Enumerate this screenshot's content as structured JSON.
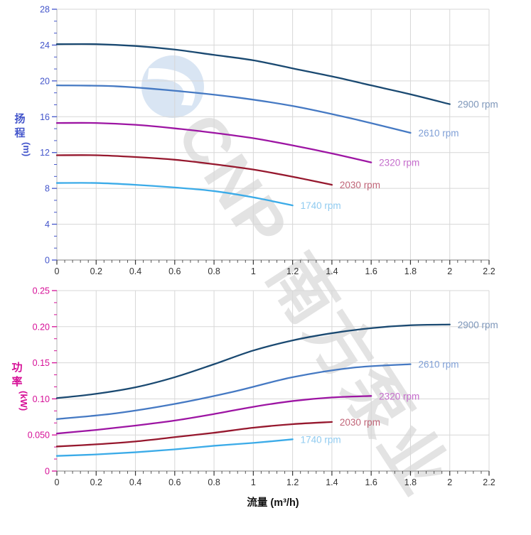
{
  "watermark": {
    "brand": "CNP",
    "company": "南方泵业",
    "logo": "cnp-swoosh-logo",
    "text_color": "#e3e3e3",
    "logo_color": "#d9e5f3"
  },
  "x_axis": {
    "title": "流量 (m³/h)",
    "tick_labels": [
      "0",
      "0.2",
      "0.4",
      "0.6",
      "0.8",
      "1",
      "1.2",
      "1.4",
      "1.6",
      "1.8",
      "2",
      "2.2"
    ],
    "tick_values": [
      0,
      0.2,
      0.4,
      0.6,
      0.8,
      1,
      1.2,
      1.4,
      1.6,
      1.8,
      2,
      2.2
    ],
    "minor_step": 0.04,
    "range": [
      0,
      2.2
    ],
    "label_color": "#333333",
    "title_color": "#111111"
  },
  "style": {
    "grid_color": "#d7d7d7",
    "axis_line_color": "#9a9a9a",
    "x_tick_color": "#333333",
    "background": "#ffffff"
  },
  "chart_data": [
    {
      "type": "line",
      "id": "head",
      "title": "",
      "ylabel": "扬程 (m)",
      "y_title_chars": [
        "扬",
        "程"
      ],
      "y_unit": "(m)",
      "xlabel": "流量 (m³/h)",
      "xlim": [
        0,
        2.2
      ],
      "ylim": [
        0,
        28
      ],
      "grid": true,
      "legend_position": "right-of-curve-end",
      "y_tick_labels": [
        "0",
        "4",
        "8",
        "12",
        "16",
        "20",
        "24",
        "28"
      ],
      "y_tick_values": [
        0,
        4,
        8,
        12,
        16,
        20,
        24,
        28
      ],
      "axis_color": "#4355cb",
      "series": [
        {
          "name": "2900 rpm",
          "color": "#1a4971",
          "label_color": "#7e97ba",
          "x": [
            0,
            0.2,
            0.4,
            0.6,
            0.8,
            1,
            1.2,
            1.4,
            1.6,
            1.8,
            2
          ],
          "y": [
            24.1,
            24.1,
            23.9,
            23.5,
            22.9,
            22.3,
            21.4,
            20.5,
            19.5,
            18.5,
            17.4
          ]
        },
        {
          "name": "2610 rpm",
          "color": "#4579c3",
          "label_color": "#7f9fd6",
          "x": [
            0,
            0.3,
            0.6,
            0.9,
            1.2,
            1.5,
            1.8
          ],
          "y": [
            19.5,
            19.4,
            18.9,
            18.2,
            17.2,
            15.8,
            14.2
          ]
        },
        {
          "name": "2320 rpm",
          "color": "#9d15a3",
          "label_color": "#c46ccb",
          "x": [
            0,
            0.2,
            0.4,
            0.6,
            0.8,
            1,
            1.2,
            1.4,
            1.6
          ],
          "y": [
            15.3,
            15.3,
            15.1,
            14.7,
            14.2,
            13.6,
            12.8,
            11.9,
            10.9
          ]
        },
        {
          "name": "2030 rpm",
          "color": "#96182e",
          "label_color": "#c06578",
          "x": [
            0,
            0.2,
            0.4,
            0.6,
            0.8,
            1,
            1.2,
            1.4
          ],
          "y": [
            11.7,
            11.7,
            11.5,
            11.2,
            10.7,
            10.1,
            9.3,
            8.4
          ]
        },
        {
          "name": "1740 rpm",
          "color": "#3babe8",
          "label_color": "#90cbf0",
          "x": [
            0,
            0.2,
            0.4,
            0.6,
            0.8,
            1,
            1.2
          ],
          "y": [
            8.6,
            8.6,
            8.4,
            8.1,
            7.7,
            7.0,
            6.1
          ]
        }
      ]
    },
    {
      "type": "line",
      "id": "power",
      "title": "",
      "ylabel": "功率 (kW)",
      "y_title_chars": [
        "功",
        "率"
      ],
      "y_unit": "(kW)",
      "xlabel": "流量 (m³/h)",
      "xlim": [
        0,
        2.2
      ],
      "ylim": [
        0,
        0.25
      ],
      "grid": true,
      "legend_position": "right-of-curve-end",
      "y_tick_labels": [
        "0",
        "0.050",
        "0.10",
        "0.15",
        "0.20",
        "0.25"
      ],
      "y_tick_values": [
        0,
        0.05,
        0.1,
        0.15,
        0.2,
        0.25
      ],
      "axis_color": "#d60f97",
      "series": [
        {
          "name": "2900 rpm",
          "color": "#1a4971",
          "label_color": "#7e97ba",
          "x": [
            0,
            0.2,
            0.4,
            0.6,
            0.8,
            1,
            1.2,
            1.4,
            1.6,
            1.8,
            2
          ],
          "y": [
            0.101,
            0.107,
            0.116,
            0.13,
            0.148,
            0.167,
            0.181,
            0.191,
            0.198,
            0.202,
            0.203
          ]
        },
        {
          "name": "2610 rpm",
          "color": "#4579c3",
          "label_color": "#7f9fd6",
          "x": [
            0,
            0.3,
            0.6,
            0.9,
            1.2,
            1.5,
            1.8
          ],
          "y": [
            0.072,
            0.08,
            0.093,
            0.11,
            0.13,
            0.143,
            0.148
          ]
        },
        {
          "name": "2320 rpm",
          "color": "#9d15a3",
          "label_color": "#c46ccb",
          "x": [
            0,
            0.2,
            0.4,
            0.6,
            0.8,
            1,
            1.2,
            1.4,
            1.6
          ],
          "y": [
            0.052,
            0.057,
            0.063,
            0.07,
            0.079,
            0.089,
            0.097,
            0.102,
            0.104
          ]
        },
        {
          "name": "2030 rpm",
          "color": "#96182e",
          "label_color": "#c06578",
          "x": [
            0,
            0.2,
            0.4,
            0.6,
            0.8,
            1,
            1.2,
            1.4
          ],
          "y": [
            0.034,
            0.037,
            0.041,
            0.047,
            0.053,
            0.06,
            0.065,
            0.068
          ]
        },
        {
          "name": "1740 rpm",
          "color": "#3babe8",
          "label_color": "#90cbf0",
          "x": [
            0,
            0.2,
            0.4,
            0.6,
            0.8,
            1,
            1.2
          ],
          "y": [
            0.021,
            0.023,
            0.026,
            0.03,
            0.035,
            0.039,
            0.044
          ]
        }
      ]
    }
  ]
}
